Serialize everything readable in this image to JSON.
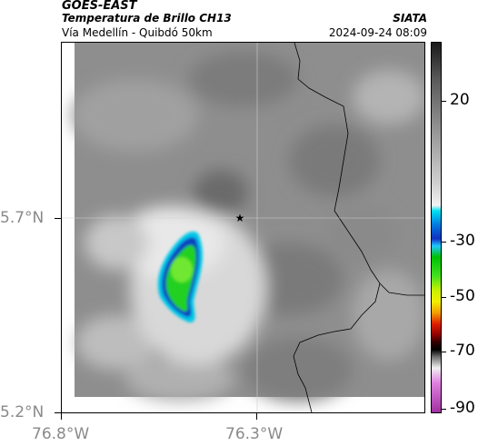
{
  "header": {
    "satellite": "GOES-EAST",
    "product": "Temperatura de Brillo CH13",
    "brand": "SIATA",
    "location": "Vía Medellín - Quibdó 50km",
    "timestamp": "2024-09-24 08:09"
  },
  "axes": {
    "y_ticks": [
      "5.7°N",
      "5.2°N"
    ],
    "x_ticks": [
      "76.8°W",
      "76.3°W"
    ]
  },
  "colorbar": {
    "labels": [
      "20",
      "-30",
      "-50",
      "-70",
      "-90"
    ],
    "values": [
      20,
      -30,
      -50,
      -70,
      -90
    ],
    "colors": {
      "warm_gray_dark": "#1c1c1c",
      "cold_cyan": "#00d8f0",
      "blue": "#1030c0",
      "green": "#20d020",
      "yellow": "#e8e800",
      "red": "#e02000",
      "black": "#000000",
      "magenta": "#c040c0"
    }
  },
  "map": {
    "marker": "star-icon",
    "gridline_lat": "5.7°N",
    "gridline_lon": "76.3°W"
  }
}
